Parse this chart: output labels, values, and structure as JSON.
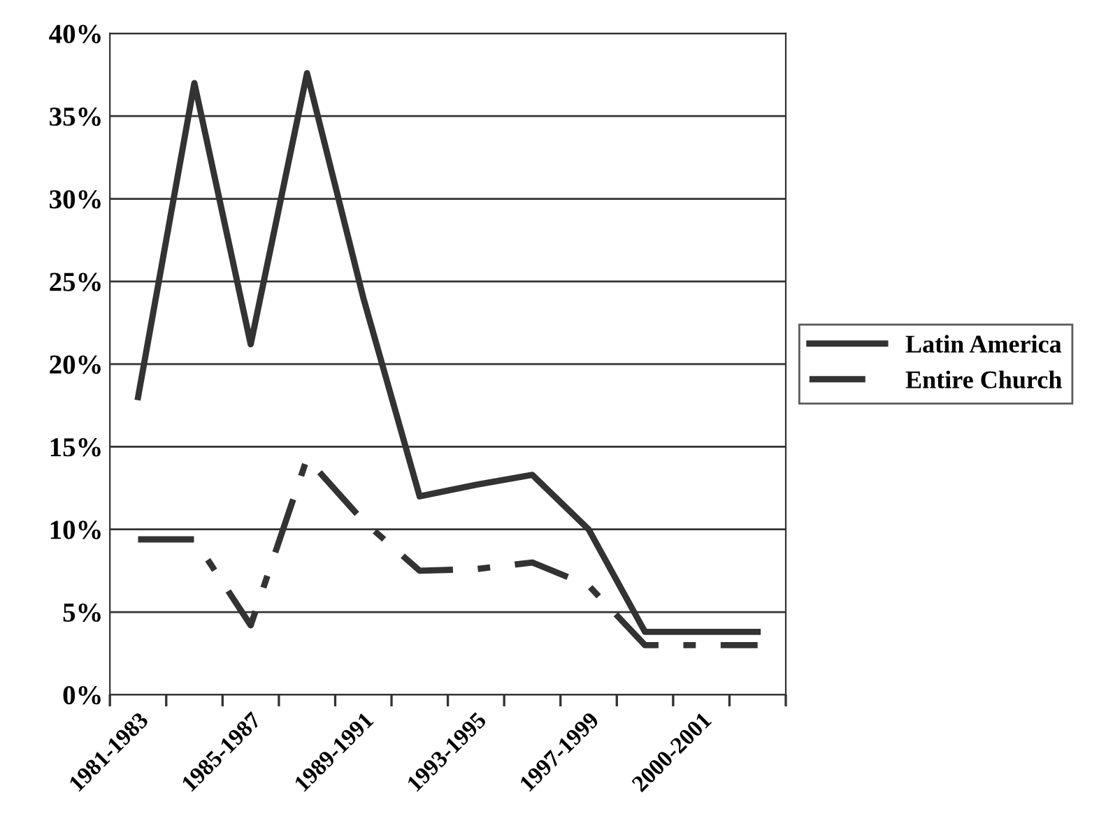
{
  "chart_data": {
    "type": "line",
    "categories": [
      "1981-1983",
      null,
      "1985-1987",
      null,
      "1989-1991",
      null,
      "1993-1995",
      null,
      "1997-1999",
      null,
      "2000-2001",
      null
    ],
    "series": [
      {
        "name": "Latin America",
        "color": "#333333",
        "line_style": "solid",
        "values": [
          18,
          37,
          21.2,
          37.6,
          24,
          12,
          12.7,
          13.3,
          10,
          3.8,
          3.8,
          3.8
        ]
      },
      {
        "name": "Entire Church",
        "color": "#333333",
        "line_style": "dashed",
        "values": [
          9.4,
          9.4,
          4.2,
          14.3,
          10.5,
          7.5,
          7.6,
          8,
          6.6,
          3,
          3,
          3
        ]
      }
    ],
    "ylim": [
      0,
      40
    ],
    "yticks": [
      {
        "value": 0,
        "label": "0%"
      },
      {
        "value": 5,
        "label": "5%"
      },
      {
        "value": 10,
        "label": "10%"
      },
      {
        "value": 15,
        "label": "15%"
      },
      {
        "value": 20,
        "label": "20%"
      },
      {
        "value": 25,
        "label": "25%"
      },
      {
        "value": 30,
        "label": "30%"
      },
      {
        "value": 35,
        "label": "35%"
      },
      {
        "value": 40,
        "label": "40%"
      }
    ],
    "grid": "y",
    "legend": "right",
    "marker": "none"
  }
}
